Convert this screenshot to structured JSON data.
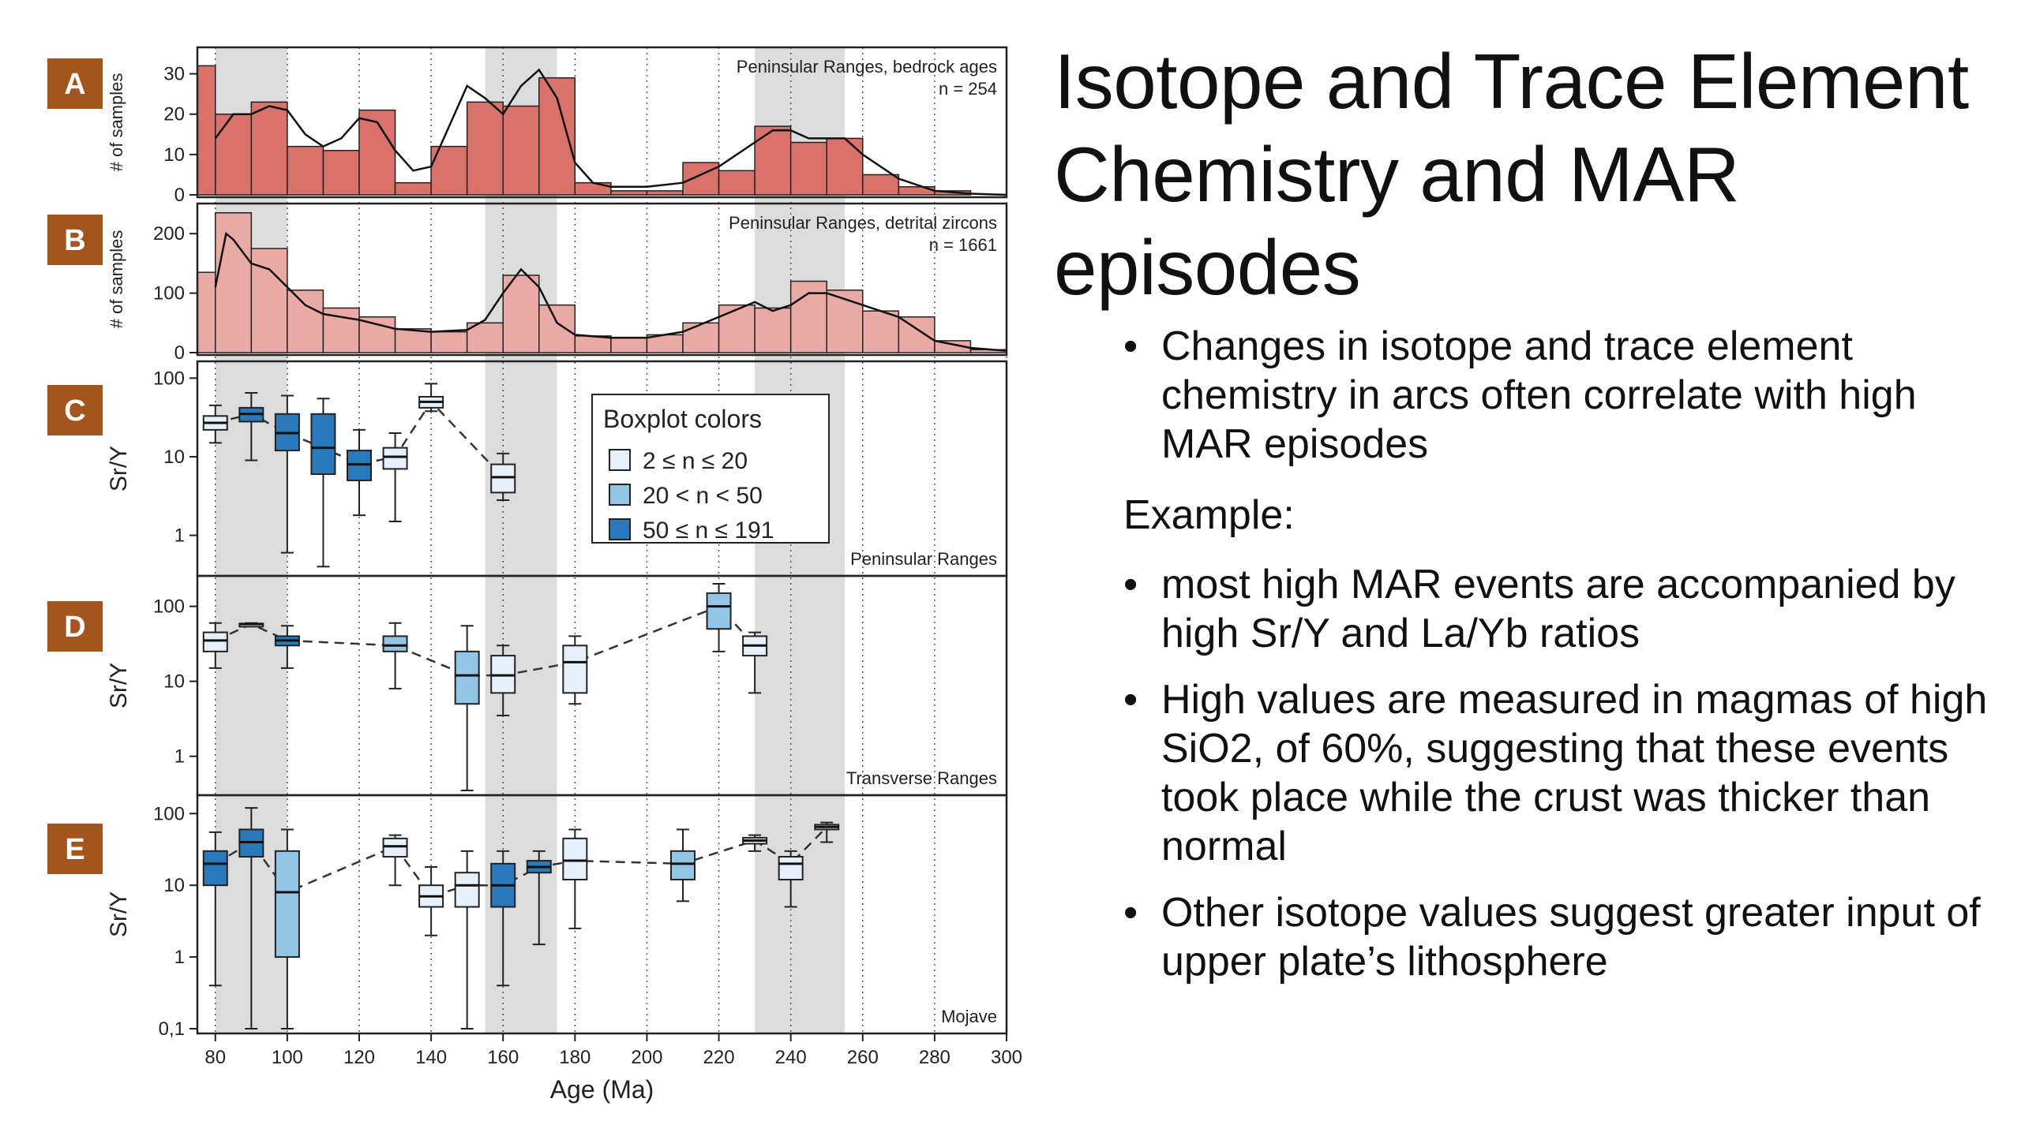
{
  "slide": {
    "title": "Isotope and Trace Element Chemistry and MAR episodes",
    "bullets_top": [
      "Changes in isotope and trace element chemistry in arcs often correlate with high MAR episodes"
    ],
    "example_label": "Example:",
    "bullets_bottom": [
      "most high MAR events are accompanied by high Sr/Y and La/Yb ratios",
      "High values are measured in magmas of high SiO2, of 60%, suggesting that these events took place while the crust was thicker than normal",
      "Other isotope values suggest greater input of upper plate’s lithosphere"
    ]
  },
  "figure": {
    "xlabel": "Age (Ma)",
    "xticks": [
      80,
      100,
      120,
      140,
      160,
      180,
      200,
      220,
      240,
      260,
      280,
      300
    ],
    "xlim": [
      75,
      300
    ],
    "shaded_bands": [
      [
        80,
        100
      ],
      [
        155,
        175
      ],
      [
        230,
        255
      ]
    ],
    "colors": {
      "hist_A": "#d9726b",
      "hist_B": "#e9aaa5",
      "band": "#dcdcdc",
      "box_light": "#e6f0fa",
      "box_mid": "#92c5e6",
      "box_dark": "#2a79ba",
      "label_box": "#a4541d"
    },
    "legend": {
      "title": "Boxplot colors",
      "entries": [
        {
          "label": "2 ≤ n ≤ 20",
          "color": "#e6f0fa"
        },
        {
          "label": "20 < n < 50",
          "color": "#92c5e6"
        },
        {
          "label": "50 ≤ n ≤ 191",
          "color": "#2a79ba"
        }
      ]
    }
  },
  "chart_data": [
    {
      "type": "bar",
      "panel": "A",
      "note": "Peninsular Ranges, bedrock ages",
      "n_label": "n = 254",
      "ylabel": "# of samples",
      "ylim": [
        0,
        35
      ],
      "yticks": [
        0,
        10,
        20,
        30
      ],
      "bin_starts": [
        75,
        80,
        90,
        100,
        110,
        120,
        130,
        140,
        150,
        160,
        170,
        180,
        190,
        200,
        210,
        220,
        230,
        240,
        250,
        260,
        270,
        280,
        290
      ],
      "bin_width": 5,
      "values": [
        32,
        20,
        23,
        12,
        11,
        21,
        3,
        12,
        23,
        22,
        29,
        3,
        1,
        1,
        8,
        6,
        17,
        13,
        14,
        5,
        2,
        1,
        0
      ],
      "curve_x": [
        80,
        85,
        90,
        95,
        100,
        105,
        110,
        115,
        120,
        125,
        130,
        135,
        140,
        145,
        150,
        155,
        160,
        165,
        170,
        175,
        180,
        185,
        190,
        200,
        210,
        220,
        230,
        235,
        240,
        245,
        250,
        255,
        260,
        270,
        280,
        290,
        300
      ],
      "curve_y": [
        14,
        20,
        20,
        22,
        21,
        15,
        12,
        14,
        19,
        18,
        11,
        6,
        7,
        17,
        27,
        24,
        20,
        27,
        31,
        24,
        8,
        3,
        2,
        2,
        3,
        7,
        13,
        16,
        16,
        14,
        14,
        14,
        10,
        4,
        1,
        0.3,
        0
      ]
    },
    {
      "type": "bar",
      "panel": "B",
      "note": "Peninsular Ranges, detrital zircons",
      "n_label": "n = 1661",
      "ylabel": "# of samples",
      "ylim": [
        0,
        240
      ],
      "yticks": [
        0,
        100,
        200
      ],
      "bin_starts": [
        75,
        80,
        90,
        100,
        110,
        120,
        130,
        140,
        150,
        160,
        170,
        180,
        190,
        200,
        210,
        220,
        230,
        240,
        250,
        260,
        270,
        280,
        290
      ],
      "bin_width": 5,
      "values": [
        135,
        235,
        175,
        105,
        75,
        60,
        40,
        35,
        50,
        130,
        80,
        28,
        25,
        30,
        50,
        80,
        75,
        120,
        105,
        70,
        60,
        20,
        5
      ],
      "curve_x": [
        80,
        83,
        85,
        90,
        95,
        100,
        105,
        110,
        115,
        120,
        130,
        140,
        150,
        155,
        160,
        165,
        170,
        175,
        180,
        190,
        200,
        210,
        220,
        230,
        235,
        240,
        245,
        250,
        255,
        260,
        270,
        280,
        290,
        300
      ],
      "curve_y": [
        110,
        200,
        190,
        150,
        140,
        110,
        80,
        65,
        60,
        55,
        40,
        35,
        38,
        55,
        100,
        140,
        110,
        50,
        30,
        25,
        25,
        35,
        60,
        85,
        70,
        80,
        100,
        100,
        90,
        80,
        60,
        20,
        8,
        3
      ]
    },
    {
      "type": "box",
      "panel": "C",
      "note": "Peninsular Ranges",
      "ylabel": "Sr/Y",
      "log_scale": true,
      "yticks": [
        1,
        10,
        100
      ],
      "ytick_labels": [
        "1",
        "10",
        "100"
      ],
      "ylim": [
        0.35,
        130
      ],
      "boxes": [
        {
          "x": 80,
          "min": 15,
          "q1": 22,
          "med": 27,
          "q3": 33,
          "max": 45,
          "cls": "light"
        },
        {
          "x": 90,
          "min": 9,
          "q1": 28,
          "med": 35,
          "q3": 42,
          "max": 65,
          "cls": "dark"
        },
        {
          "x": 100,
          "min": 0.6,
          "q1": 12,
          "med": 20,
          "q3": 35,
          "max": 60,
          "cls": "dark"
        },
        {
          "x": 110,
          "min": 0.4,
          "q1": 6,
          "med": 13,
          "q3": 35,
          "max": 55,
          "cls": "dark"
        },
        {
          "x": 120,
          "min": 1.8,
          "q1": 5,
          "med": 8,
          "q3": 12,
          "max": 22,
          "cls": "dark"
        },
        {
          "x": 130,
          "min": 1.5,
          "q1": 7,
          "med": 10,
          "q3": 13,
          "max": 20,
          "cls": "light"
        },
        {
          "x": 140,
          "min": 38,
          "q1": 42,
          "med": 50,
          "q3": 58,
          "max": 85,
          "cls": "light"
        },
        {
          "x": 160,
          "min": 2.8,
          "q1": 3.5,
          "med": 5.5,
          "q3": 8,
          "max": 11,
          "cls": "light"
        }
      ]
    },
    {
      "type": "box",
      "panel": "D",
      "note": "Transverse Ranges",
      "ylabel": "Sr/Y",
      "log_scale": true,
      "yticks": [
        1,
        10,
        100
      ],
      "ytick_labels": [
        "1",
        "10",
        "100"
      ],
      "ylim": [
        0.35,
        200
      ],
      "boxes": [
        {
          "x": 80,
          "min": 15,
          "q1": 25,
          "med": 35,
          "q3": 45,
          "max": 60,
          "cls": "light"
        },
        {
          "x": 90,
          "min": 55,
          "q1": 57,
          "med": 58,
          "q3": 59,
          "max": 60,
          "cls": "light"
        },
        {
          "x": 100,
          "min": 15,
          "q1": 30,
          "med": 35,
          "q3": 40,
          "max": 55,
          "cls": "dark"
        },
        {
          "x": 130,
          "min": 8,
          "q1": 25,
          "med": 30,
          "q3": 40,
          "max": 60,
          "cls": "mid"
        },
        {
          "x": 150,
          "min": 0.35,
          "q1": 5,
          "med": 12,
          "q3": 25,
          "max": 55,
          "cls": "mid"
        },
        {
          "x": 160,
          "min": 3.5,
          "q1": 7,
          "med": 12,
          "q3": 22,
          "max": 30,
          "cls": "light"
        },
        {
          "x": 180,
          "min": 5,
          "q1": 7,
          "med": 18,
          "q3": 30,
          "max": 40,
          "cls": "light"
        },
        {
          "x": 220,
          "min": 25,
          "q1": 50,
          "med": 100,
          "q3": 150,
          "max": 200,
          "cls": "mid"
        },
        {
          "x": 230,
          "min": 7,
          "q1": 22,
          "med": 30,
          "q3": 40,
          "max": 45,
          "cls": "light"
        }
      ]
    },
    {
      "type": "box",
      "panel": "E",
      "note": "Mojave",
      "ylabel": "Sr/Y",
      "log_scale": true,
      "yticks": [
        0.1,
        1,
        10,
        100
      ],
      "ytick_labels": [
        "0,1",
        "1",
        "10",
        "100"
      ],
      "ylim": [
        0.1,
        140
      ],
      "boxes": [
        {
          "x": 80,
          "min": 0.4,
          "q1": 10,
          "med": 20,
          "q3": 30,
          "max": 55,
          "cls": "dark"
        },
        {
          "x": 90,
          "min": 0.1,
          "q1": 25,
          "med": 40,
          "q3": 60,
          "max": 120,
          "cls": "dark"
        },
        {
          "x": 100,
          "min": 0.1,
          "q1": 1,
          "med": 8,
          "q3": 30,
          "max": 60,
          "cls": "mid"
        },
        {
          "x": 130,
          "min": 10,
          "q1": 25,
          "med": 35,
          "q3": 45,
          "max": 50,
          "cls": "light"
        },
        {
          "x": 140,
          "min": 2,
          "q1": 5,
          "med": 7,
          "q3": 10,
          "max": 18,
          "cls": "light"
        },
        {
          "x": 150,
          "min": 0.1,
          "q1": 5,
          "med": 10,
          "q3": 15,
          "max": 30,
          "cls": "light"
        },
        {
          "x": 160,
          "min": 0.4,
          "q1": 5,
          "med": 10,
          "q3": 20,
          "max": 30,
          "cls": "dark"
        },
        {
          "x": 170,
          "min": 1.5,
          "q1": 15,
          "med": 18,
          "q3": 22,
          "max": 30,
          "cls": "dark"
        },
        {
          "x": 180,
          "min": 2.5,
          "q1": 12,
          "med": 22,
          "q3": 45,
          "max": 60,
          "cls": "light"
        },
        {
          "x": 210,
          "min": 6,
          "q1": 12,
          "med": 20,
          "q3": 30,
          "max": 60,
          "cls": "mid"
        },
        {
          "x": 230,
          "min": 30,
          "q1": 38,
          "med": 42,
          "q3": 46,
          "max": 50,
          "cls": "light"
        },
        {
          "x": 240,
          "min": 5,
          "q1": 12,
          "med": 20,
          "q3": 25,
          "max": 30,
          "cls": "light"
        },
        {
          "x": 250,
          "min": 40,
          "q1": 60,
          "med": 65,
          "q3": 70,
          "max": 75,
          "cls": "light"
        }
      ]
    }
  ]
}
